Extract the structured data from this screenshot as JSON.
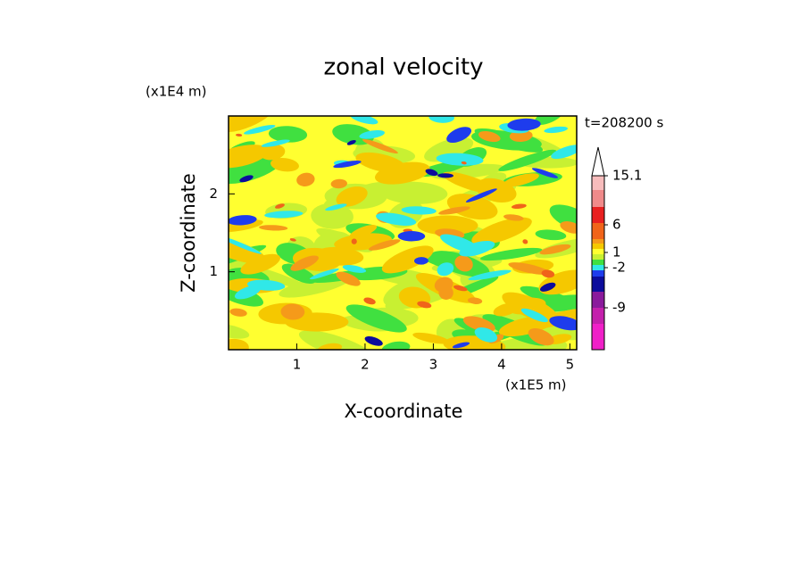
{
  "chart_data": {
    "type": "contour",
    "title": "zonal velocity",
    "time_label": "t=208200 s",
    "x_label": "X-coordinate",
    "x_unit": "(x1E5 m)",
    "y_label": "Z-coordinate",
    "y_unit": "(x1E4 m)",
    "xlim": [
      0,
      5.1
    ],
    "xticks": [
      1,
      2,
      3,
      4,
      5
    ],
    "ylim": [
      0,
      3
    ],
    "yticks": [
      1,
      2
    ],
    "colorbar": {
      "colors": [
        "#f7bcbc",
        "#f08a8a",
        "#e82020",
        "#f0641a",
        "#f59a1a",
        "#f5c800",
        "#ffff30",
        "#c8f032",
        "#40e040",
        "#30e8e8",
        "#1e3ced",
        "#0c0c9c",
        "#8a1a9c",
        "#c420ac",
        "#f020c8"
      ],
      "ticks": [
        15.1,
        6,
        1,
        -2,
        -9
      ]
    }
  }
}
